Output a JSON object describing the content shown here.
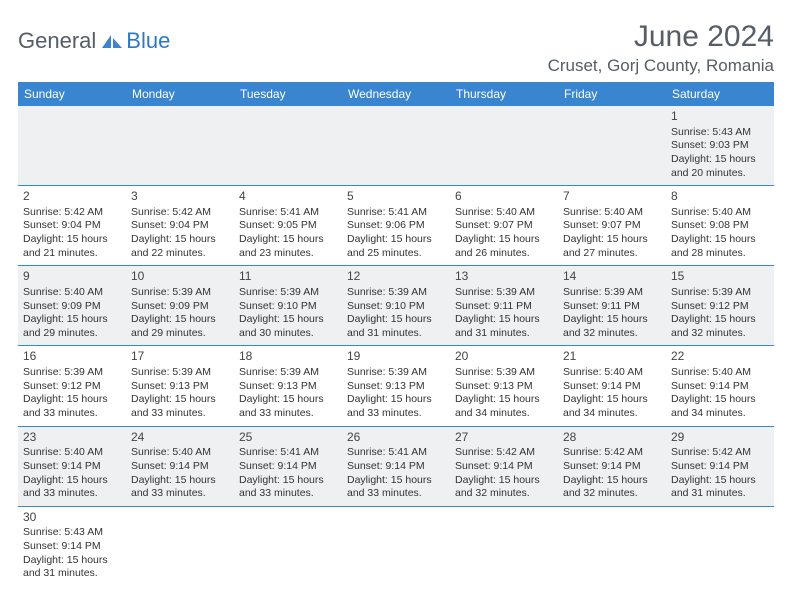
{
  "logo": {
    "general": "General",
    "blue": "Blue"
  },
  "title": "June 2024",
  "location": "Cruset, Gorj County, Romania",
  "weekdays": [
    "Sunday",
    "Monday",
    "Tuesday",
    "Wednesday",
    "Thursday",
    "Friday",
    "Saturday"
  ],
  "colors": {
    "header_bg": "#3a85d0",
    "header_text": "#ffffff",
    "shade_bg": "#eef0f2",
    "border": "#3a85d0",
    "title_color": "#555d66",
    "logo_blue": "#2f78c2"
  },
  "weeks": [
    {
      "shade": true,
      "days": [
        null,
        null,
        null,
        null,
        null,
        null,
        {
          "n": "1",
          "sr": "5:43 AM",
          "ss": "9:03 PM",
          "dl": "15 hours and 20 minutes."
        }
      ]
    },
    {
      "shade": false,
      "days": [
        {
          "n": "2",
          "sr": "5:42 AM",
          "ss": "9:04 PM",
          "dl": "15 hours and 21 minutes."
        },
        {
          "n": "3",
          "sr": "5:42 AM",
          "ss": "9:04 PM",
          "dl": "15 hours and 22 minutes."
        },
        {
          "n": "4",
          "sr": "5:41 AM",
          "ss": "9:05 PM",
          "dl": "15 hours and 23 minutes."
        },
        {
          "n": "5",
          "sr": "5:41 AM",
          "ss": "9:06 PM",
          "dl": "15 hours and 25 minutes."
        },
        {
          "n": "6",
          "sr": "5:40 AM",
          "ss": "9:07 PM",
          "dl": "15 hours and 26 minutes."
        },
        {
          "n": "7",
          "sr": "5:40 AM",
          "ss": "9:07 PM",
          "dl": "15 hours and 27 minutes."
        },
        {
          "n": "8",
          "sr": "5:40 AM",
          "ss": "9:08 PM",
          "dl": "15 hours and 28 minutes."
        }
      ]
    },
    {
      "shade": true,
      "days": [
        {
          "n": "9",
          "sr": "5:40 AM",
          "ss": "9:09 PM",
          "dl": "15 hours and 29 minutes."
        },
        {
          "n": "10",
          "sr": "5:39 AM",
          "ss": "9:09 PM",
          "dl": "15 hours and 29 minutes."
        },
        {
          "n": "11",
          "sr": "5:39 AM",
          "ss": "9:10 PM",
          "dl": "15 hours and 30 minutes."
        },
        {
          "n": "12",
          "sr": "5:39 AM",
          "ss": "9:10 PM",
          "dl": "15 hours and 31 minutes."
        },
        {
          "n": "13",
          "sr": "5:39 AM",
          "ss": "9:11 PM",
          "dl": "15 hours and 31 minutes."
        },
        {
          "n": "14",
          "sr": "5:39 AM",
          "ss": "9:11 PM",
          "dl": "15 hours and 32 minutes."
        },
        {
          "n": "15",
          "sr": "5:39 AM",
          "ss": "9:12 PM",
          "dl": "15 hours and 32 minutes."
        }
      ]
    },
    {
      "shade": false,
      "days": [
        {
          "n": "16",
          "sr": "5:39 AM",
          "ss": "9:12 PM",
          "dl": "15 hours and 33 minutes."
        },
        {
          "n": "17",
          "sr": "5:39 AM",
          "ss": "9:13 PM",
          "dl": "15 hours and 33 minutes."
        },
        {
          "n": "18",
          "sr": "5:39 AM",
          "ss": "9:13 PM",
          "dl": "15 hours and 33 minutes."
        },
        {
          "n": "19",
          "sr": "5:39 AM",
          "ss": "9:13 PM",
          "dl": "15 hours and 33 minutes."
        },
        {
          "n": "20",
          "sr": "5:39 AM",
          "ss": "9:13 PM",
          "dl": "15 hours and 34 minutes."
        },
        {
          "n": "21",
          "sr": "5:40 AM",
          "ss": "9:14 PM",
          "dl": "15 hours and 34 minutes."
        },
        {
          "n": "22",
          "sr": "5:40 AM",
          "ss": "9:14 PM",
          "dl": "15 hours and 34 minutes."
        }
      ]
    },
    {
      "shade": true,
      "days": [
        {
          "n": "23",
          "sr": "5:40 AM",
          "ss": "9:14 PM",
          "dl": "15 hours and 33 minutes."
        },
        {
          "n": "24",
          "sr": "5:40 AM",
          "ss": "9:14 PM",
          "dl": "15 hours and 33 minutes."
        },
        {
          "n": "25",
          "sr": "5:41 AM",
          "ss": "9:14 PM",
          "dl": "15 hours and 33 minutes."
        },
        {
          "n": "26",
          "sr": "5:41 AM",
          "ss": "9:14 PM",
          "dl": "15 hours and 33 minutes."
        },
        {
          "n": "27",
          "sr": "5:42 AM",
          "ss": "9:14 PM",
          "dl": "15 hours and 32 minutes."
        },
        {
          "n": "28",
          "sr": "5:42 AM",
          "ss": "9:14 PM",
          "dl": "15 hours and 32 minutes."
        },
        {
          "n": "29",
          "sr": "5:42 AM",
          "ss": "9:14 PM",
          "dl": "15 hours and 31 minutes."
        }
      ]
    },
    {
      "shade": false,
      "last": true,
      "days": [
        {
          "n": "30",
          "sr": "5:43 AM",
          "ss": "9:14 PM",
          "dl": "15 hours and 31 minutes."
        },
        null,
        null,
        null,
        null,
        null,
        null
      ]
    }
  ],
  "labels": {
    "sunrise": "Sunrise: ",
    "sunset": "Sunset: ",
    "daylight": "Daylight: "
  }
}
